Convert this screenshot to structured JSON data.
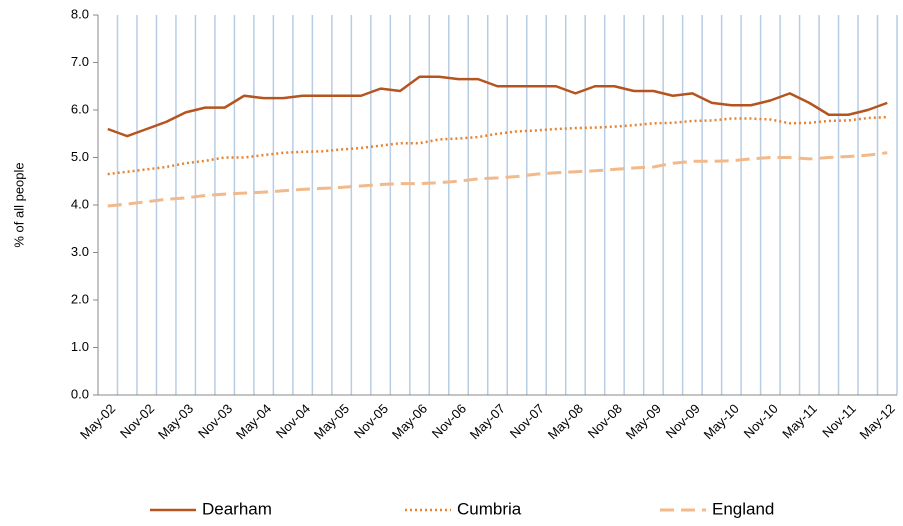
{
  "chart_data": {
    "type": "line",
    "y_label": "% of all people",
    "categories": [
      "May-02",
      null,
      "Nov-02",
      null,
      "May-03",
      null,
      "Nov-03",
      null,
      "May-04",
      null,
      "Nov-04",
      null,
      "May-05",
      null,
      "Nov-05",
      null,
      "May-06",
      null,
      "Nov-06",
      null,
      "May-07",
      null,
      "Nov-07",
      null,
      "May-08",
      null,
      "Nov-08",
      null,
      "May-09",
      null,
      "Nov-09",
      null,
      "May-10",
      null,
      "Nov-10",
      null,
      "May-11",
      null,
      "Nov-11",
      null,
      "May-12"
    ],
    "series": [
      {
        "name": "Dearham",
        "color": "#b5541f",
        "line_style": "solid",
        "values": [
          5.6,
          5.45,
          5.6,
          5.75,
          5.95,
          6.05,
          6.05,
          6.3,
          6.25,
          6.25,
          6.3,
          6.3,
          6.3,
          6.3,
          6.45,
          6.4,
          6.7,
          6.7,
          6.65,
          6.65,
          6.5,
          6.5,
          6.5,
          6.5,
          6.35,
          6.5,
          6.5,
          6.4,
          6.4,
          6.3,
          6.35,
          6.15,
          6.1,
          6.1,
          6.2,
          6.35,
          6.15,
          5.9,
          5.9,
          6.0,
          6.15
        ]
      },
      {
        "name": "Cumbria",
        "color": "#e8822e",
        "line_style": "dotted",
        "values": [
          4.65,
          4.7,
          4.75,
          4.8,
          4.88,
          4.93,
          5.0,
          5.0,
          5.05,
          5.1,
          5.12,
          5.13,
          5.17,
          5.2,
          5.25,
          5.3,
          5.3,
          5.38,
          5.4,
          5.43,
          5.5,
          5.55,
          5.57,
          5.6,
          5.62,
          5.63,
          5.65,
          5.68,
          5.72,
          5.73,
          5.77,
          5.78,
          5.82,
          5.82,
          5.8,
          5.72,
          5.73,
          5.77,
          5.78,
          5.83,
          5.85
        ]
      },
      {
        "name": "England",
        "color": "#f2b98a",
        "line_style": "dashed",
        "values": [
          3.98,
          4.02,
          4.07,
          4.12,
          4.15,
          4.2,
          4.23,
          4.25,
          4.27,
          4.3,
          4.33,
          4.35,
          4.37,
          4.4,
          4.43,
          4.45,
          4.45,
          4.47,
          4.5,
          4.55,
          4.57,
          4.6,
          4.65,
          4.68,
          4.7,
          4.72,
          4.75,
          4.78,
          4.8,
          4.88,
          4.92,
          4.92,
          4.93,
          4.97,
          5.0,
          5.0,
          4.97,
          5.0,
          5.02,
          5.05,
          5.1
        ]
      }
    ],
    "ylim": [
      0,
      8
    ],
    "yticks": [
      {
        "value": 0,
        "label": "0.0"
      },
      {
        "value": 1,
        "label": "1.0"
      },
      {
        "value": 2,
        "label": "2.0"
      },
      {
        "value": 3,
        "label": "3.0"
      },
      {
        "value": 4,
        "label": "4.0"
      },
      {
        "value": 5,
        "label": "5.0"
      },
      {
        "value": 6,
        "label": "6.0"
      },
      {
        "value": 7,
        "label": "7.0"
      },
      {
        "value": 8,
        "label": "8.0"
      }
    ],
    "x_grid": true,
    "grid_color": "#b8cce4",
    "legend": "bottom"
  }
}
